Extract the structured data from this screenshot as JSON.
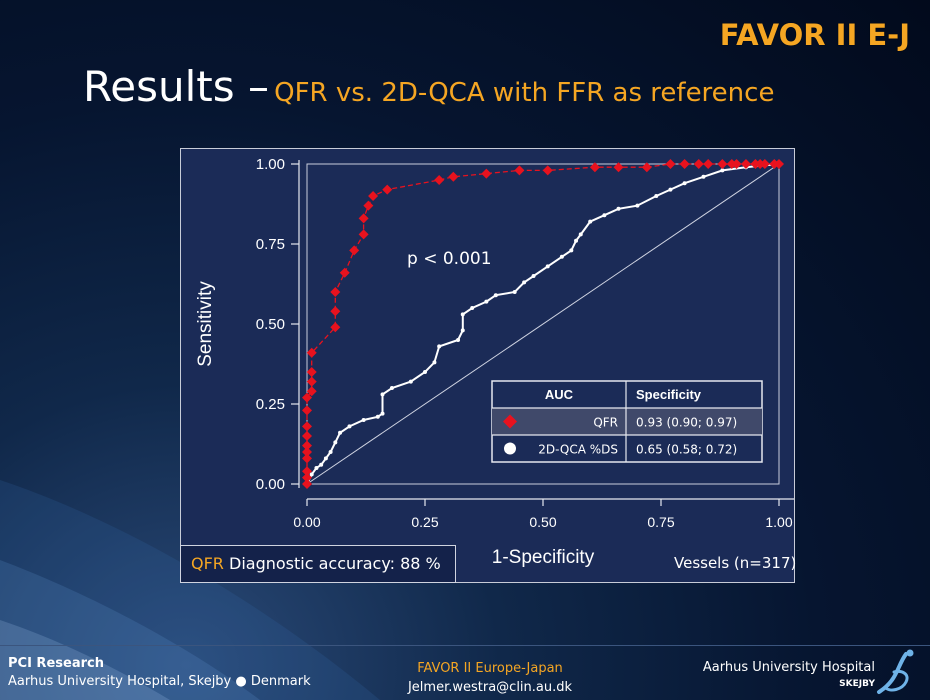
{
  "header": {
    "brand": "FAVOR II E-J",
    "title": "Results –",
    "subtitle": "QFR vs. 2D-QCA with FFR as reference"
  },
  "chart_data": {
    "type": "line",
    "xlabel": "1-Specificity",
    "ylabel": "Sensitivity",
    "xlim": [
      0,
      1
    ],
    "ylim": [
      0,
      1
    ],
    "xticks": [
      "0.00",
      "0.25",
      "0.50",
      "0.75",
      "1.00"
    ],
    "yticks": [
      "0.00",
      "0.25",
      "0.50",
      "0.75",
      "1.00"
    ],
    "annotation": "p < 0.001",
    "reference_diagonal": true,
    "series": [
      {
        "name": "QFR",
        "color": "#e8121e",
        "marker": "diamond",
        "points": [
          [
            0,
            0
          ],
          [
            0,
            0.02
          ],
          [
            0,
            0.04
          ],
          [
            0,
            0.08
          ],
          [
            0,
            0.1
          ],
          [
            0,
            0.12
          ],
          [
            0,
            0.15
          ],
          [
            0,
            0.18
          ],
          [
            0,
            0.23
          ],
          [
            0,
            0.27
          ],
          [
            0.01,
            0.29
          ],
          [
            0.01,
            0.32
          ],
          [
            0.01,
            0.35
          ],
          [
            0.01,
            0.41
          ],
          [
            0.06,
            0.49
          ],
          [
            0.06,
            0.54
          ],
          [
            0.06,
            0.6
          ],
          [
            0.08,
            0.66
          ],
          [
            0.1,
            0.73
          ],
          [
            0.12,
            0.78
          ],
          [
            0.12,
            0.83
          ],
          [
            0.13,
            0.87
          ],
          [
            0.14,
            0.9
          ],
          [
            0.17,
            0.92
          ],
          [
            0.28,
            0.95
          ],
          [
            0.31,
            0.96
          ],
          [
            0.38,
            0.97
          ],
          [
            0.45,
            0.98
          ],
          [
            0.51,
            0.98
          ],
          [
            0.61,
            0.99
          ],
          [
            0.66,
            0.99
          ],
          [
            0.72,
            0.99
          ],
          [
            0.77,
            1.0
          ],
          [
            0.8,
            1.0
          ],
          [
            0.83,
            1.0
          ],
          [
            0.85,
            1.0
          ],
          [
            0.88,
            1.0
          ],
          [
            0.9,
            1.0
          ],
          [
            0.91,
            1.0
          ],
          [
            0.93,
            1.0
          ],
          [
            0.95,
            1.0
          ],
          [
            0.96,
            1.0
          ],
          [
            0.97,
            1.0
          ],
          [
            0.99,
            1.0
          ],
          [
            1.0,
            1.0
          ]
        ]
      },
      {
        "name": "2D-QCA %DS",
        "color": "#ffffff",
        "marker": "circle",
        "points": [
          [
            0,
            0
          ],
          [
            0.01,
            0.03
          ],
          [
            0.02,
            0.05
          ],
          [
            0.03,
            0.06
          ],
          [
            0.04,
            0.08
          ],
          [
            0.05,
            0.1
          ],
          [
            0.06,
            0.13
          ],
          [
            0.07,
            0.16
          ],
          [
            0.09,
            0.18
          ],
          [
            0.12,
            0.2
          ],
          [
            0.15,
            0.21
          ],
          [
            0.16,
            0.22
          ],
          [
            0.16,
            0.28
          ],
          [
            0.18,
            0.3
          ],
          [
            0.22,
            0.32
          ],
          [
            0.25,
            0.35
          ],
          [
            0.27,
            0.38
          ],
          [
            0.28,
            0.43
          ],
          [
            0.32,
            0.45
          ],
          [
            0.33,
            0.48
          ],
          [
            0.33,
            0.53
          ],
          [
            0.35,
            0.55
          ],
          [
            0.38,
            0.57
          ],
          [
            0.4,
            0.59
          ],
          [
            0.44,
            0.6
          ],
          [
            0.46,
            0.63
          ],
          [
            0.48,
            0.65
          ],
          [
            0.51,
            0.68
          ],
          [
            0.54,
            0.71
          ],
          [
            0.56,
            0.73
          ],
          [
            0.57,
            0.76
          ],
          [
            0.58,
            0.78
          ],
          [
            0.6,
            0.82
          ],
          [
            0.63,
            0.84
          ],
          [
            0.66,
            0.86
          ],
          [
            0.7,
            0.87
          ],
          [
            0.74,
            0.9
          ],
          [
            0.77,
            0.92
          ],
          [
            0.8,
            0.94
          ],
          [
            0.84,
            0.96
          ],
          [
            0.88,
            0.98
          ],
          [
            0.93,
            0.99
          ],
          [
            1.0,
            1.0
          ]
        ]
      }
    ]
  },
  "legend_table": {
    "header_auc": "AUC",
    "header_spec": "Specificity",
    "rows": [
      {
        "label": "QFR",
        "spec": "0.93 (0.90; 0.97)"
      },
      {
        "label": "2D-QCA %DS",
        "spec": "0.65 (0.58; 0.72)"
      }
    ]
  },
  "accuracy": {
    "name": "QFR",
    "text": "Diagnostic accuracy: 88 %"
  },
  "vessels": "Vessels (n=317)",
  "footer": {
    "org": "PCI Research",
    "location": "Aarhus University Hospital, Skejby ● Denmark",
    "center_line1": "FAVOR II Europe-Japan",
    "center_line2": "Jelmer.westra@clin.au.dk",
    "hospital": "Aarhus University Hospital",
    "skejby": "SKEJBY"
  }
}
